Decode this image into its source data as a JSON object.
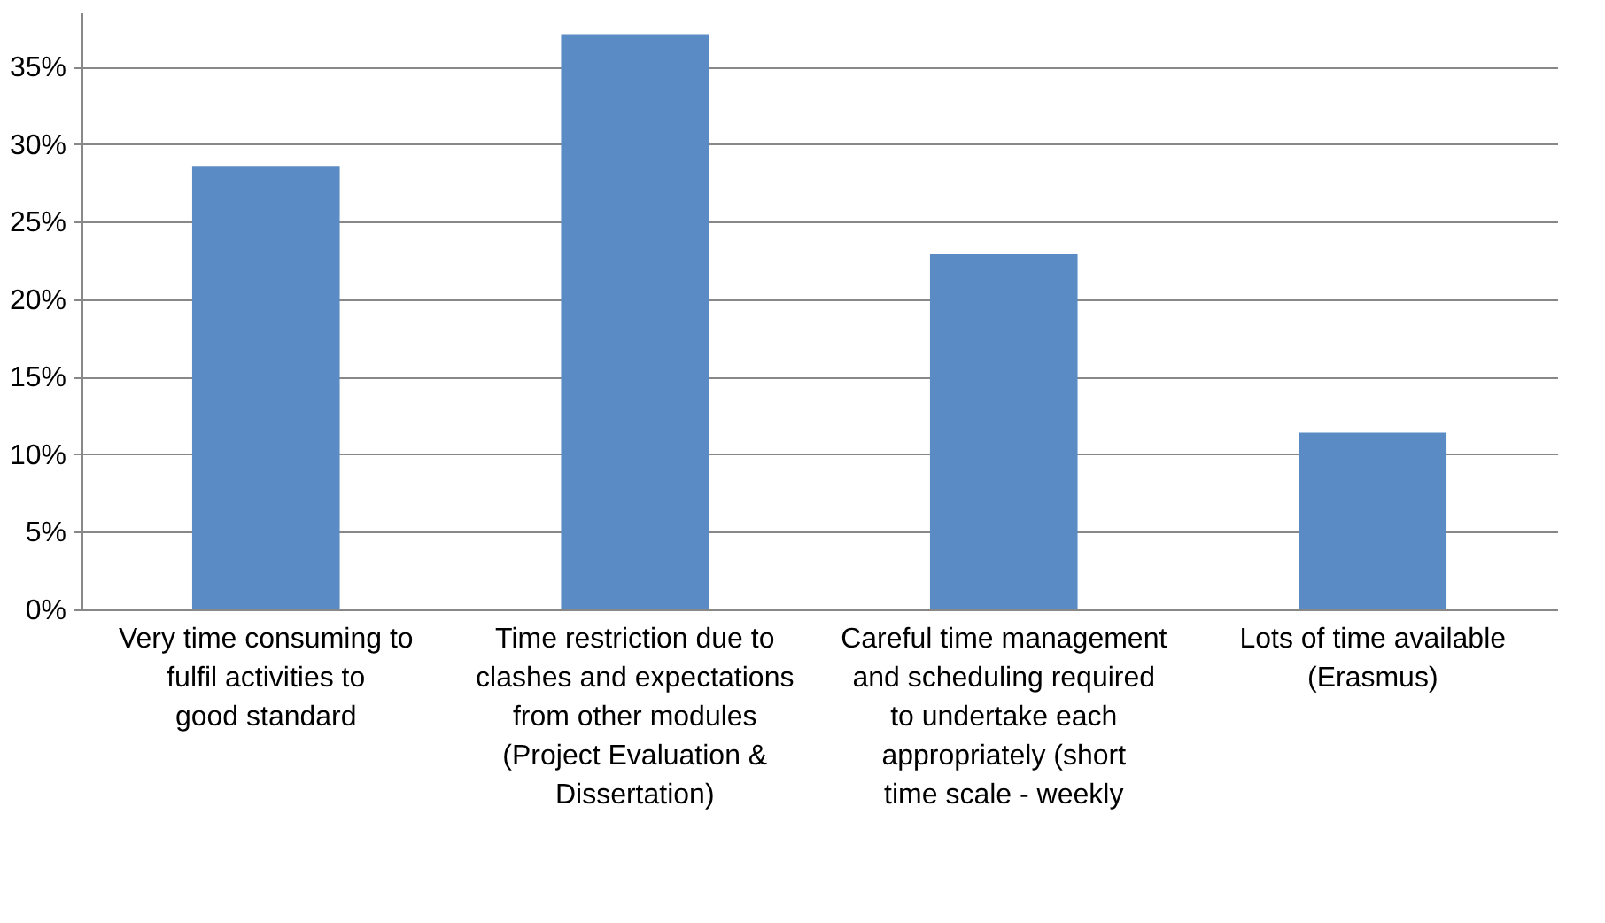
{
  "chart_data": {
    "type": "bar",
    "categories": [
      "Very time consuming to fulfil activities to good standard",
      "Time restriction due to clashes and expectations from other modules (Project Evaluation & Dissertation)",
      "Careful time management and scheduling required to undertake each appropriately (short time scale - weekly",
      "Lots of time available (Erasmus)"
    ],
    "values": [
      28.6,
      37.1,
      22.9,
      11.4
    ],
    "color": "#5b8bc5",
    "ylim": [
      0,
      38.5
    ],
    "yticks": [
      {
        "value": 0,
        "label": "0%"
      },
      {
        "value": 5,
        "label": "5%"
      },
      {
        "value": 10,
        "label": "10%"
      },
      {
        "value": 15,
        "label": "15%"
      },
      {
        "value": 20,
        "label": "20%"
      },
      {
        "value": 25,
        "label": "25%"
      },
      {
        "value": 30,
        "label": "30%"
      },
      {
        "value": 35,
        "label": "35%"
      }
    ],
    "grid": "y"
  }
}
